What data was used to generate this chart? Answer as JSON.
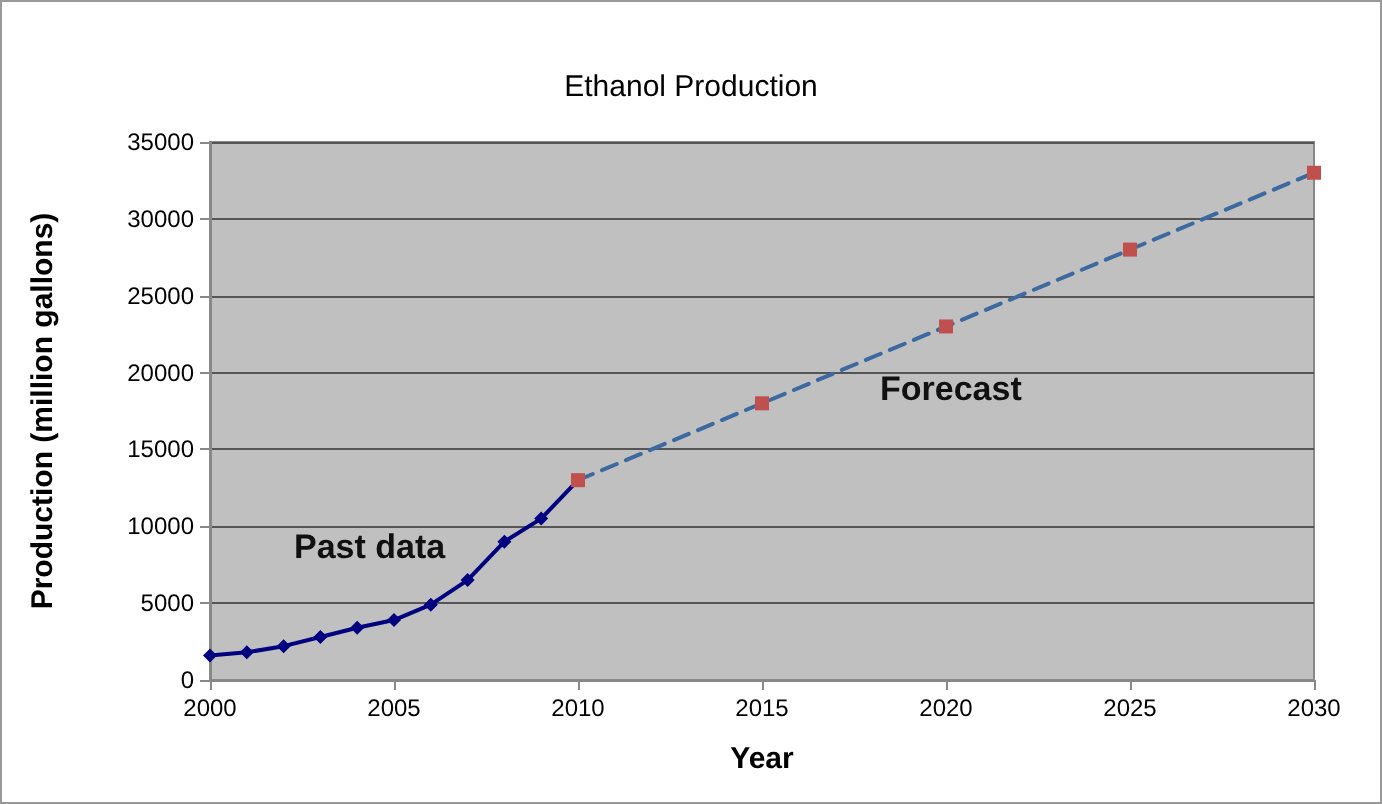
{
  "chart_data": {
    "type": "line",
    "title": "Ethanol Production",
    "xlabel": "Year",
    "ylabel": "Production (million gallons)",
    "xlim": [
      2000,
      2030
    ],
    "xticks": [
      2000,
      2005,
      2010,
      2015,
      2020,
      2025,
      2030
    ],
    "ylim": [
      0,
      35000
    ],
    "yticks": [
      0,
      5000,
      10000,
      15000,
      20000,
      25000,
      30000,
      35000
    ],
    "grid": "y",
    "series": [
      {
        "x": [
          2000,
          2001,
          2002,
          2003,
          2004,
          2005,
          2006,
          2007,
          2008,
          2009,
          2010
        ],
        "values": [
          1600,
          1800,
          2200,
          2800,
          3400,
          3900,
          4900,
          6500,
          9000,
          10500,
          13000
        ],
        "color": "#000080",
        "marker": "diamond",
        "line_style": "solid"
      },
      {
        "x": [
          2010,
          2015,
          2020,
          2025,
          2030
        ],
        "values": [
          13000,
          18000,
          23000,
          28000,
          33000
        ],
        "color": "#3c6aa0",
        "colors": [
          "#c0504d",
          "#c0504d",
          "#c0504d",
          "#c0504d",
          "#c0504d"
        ],
        "marker": "square",
        "line_style": "dashed"
      }
    ],
    "annotations": [
      "Past data",
      "Forecast"
    ]
  }
}
